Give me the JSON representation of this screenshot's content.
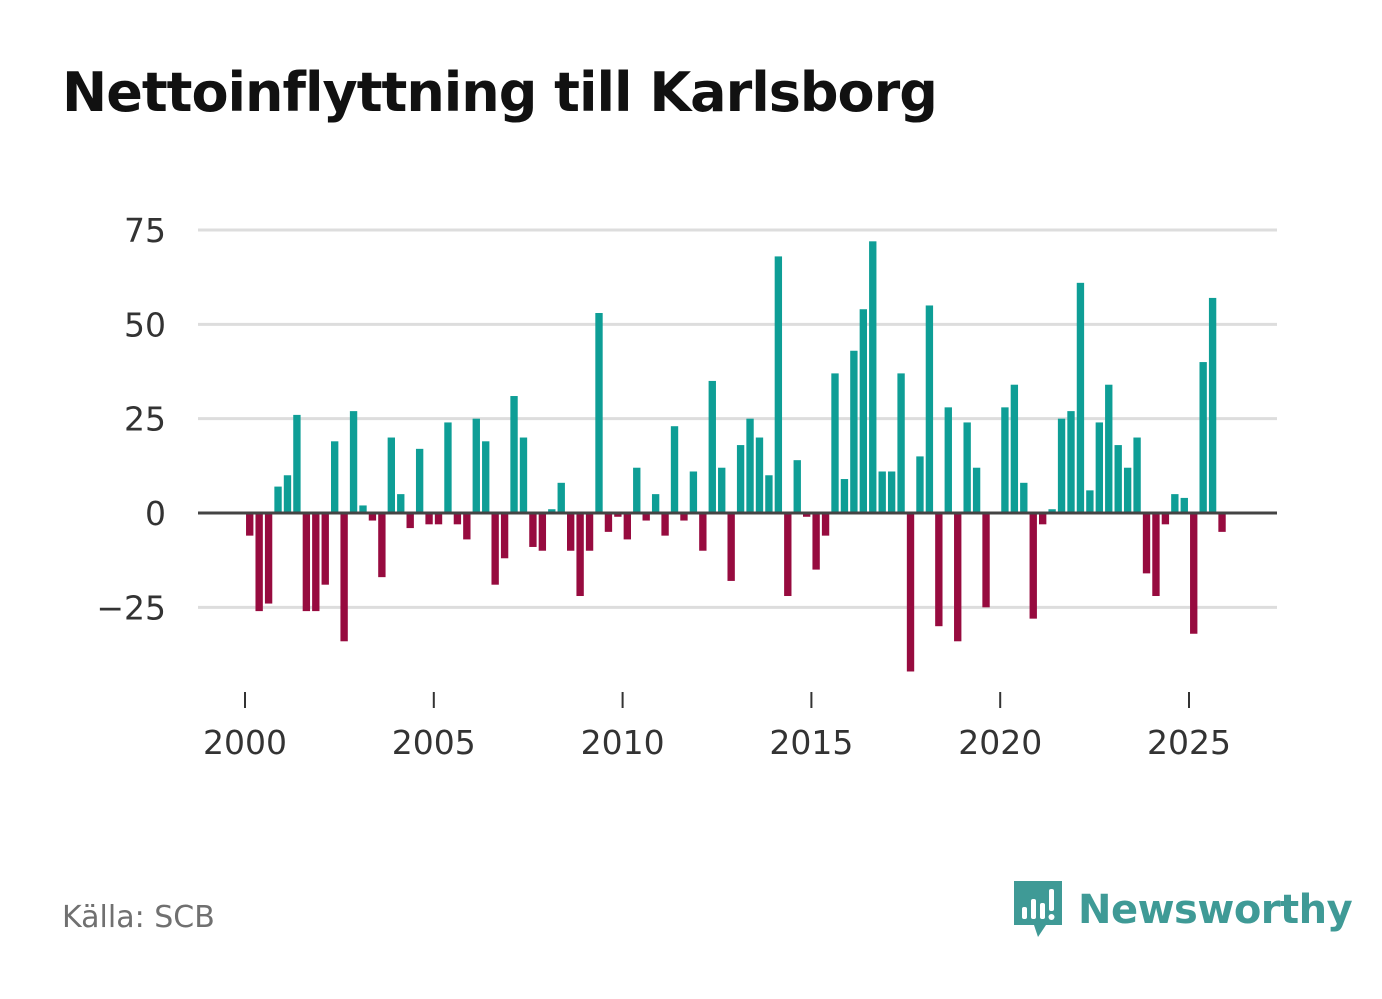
{
  "title": "Nettoinflyttning till Karlsborg",
  "source": "Källa: SCB",
  "brand": {
    "name": "Newsworthy"
  },
  "colors": {
    "positive": "#0e9e96",
    "negative": "#970b3f",
    "grid": "#dddddd",
    "zero_line": "#444444",
    "brand": "#3f9a96"
  },
  "chart_data": {
    "type": "bar",
    "title": "Nettoinflyttning till Karlsborg",
    "xlabel": "",
    "ylabel": "",
    "period": "quarterly",
    "x_start": 2000.0,
    "x_step": 0.25,
    "xlim": [
      1998.9,
      2027.5
    ],
    "ylim": [
      -45,
      78
    ],
    "yticks": [
      75,
      50,
      25,
      0,
      -25
    ],
    "ytick_labels": [
      "75",
      "50",
      "25",
      "0",
      "−25"
    ],
    "xticks": [
      2000,
      2005,
      2010,
      2015,
      2020,
      2025
    ],
    "xtick_labels": [
      "2000",
      "2005",
      "2010",
      "2015",
      "2020",
      "2025"
    ],
    "grid": true,
    "values": [
      -6,
      -26,
      -24,
      7,
      10,
      26,
      -26,
      -26,
      -19,
      19,
      -34,
      27,
      2,
      -2,
      -17,
      20,
      5,
      -4,
      17,
      -3,
      -3,
      24,
      -3,
      -7,
      25,
      19,
      -19,
      -12,
      31,
      20,
      -9,
      -10,
      1,
      8,
      -10,
      -22,
      -10,
      53,
      -5,
      -1,
      -7,
      12,
      -2,
      5,
      -6,
      23,
      -2,
      11,
      -10,
      35,
      12,
      -18,
      18,
      25,
      20,
      10,
      68,
      -22,
      14,
      -1,
      -15,
      -6,
      37,
      9,
      43,
      54,
      72,
      11,
      11,
      37,
      -42,
      15,
      55,
      -30,
      28,
      -34,
      24,
      12,
      -25,
      0,
      28,
      34,
      8,
      -28,
      -3,
      1,
      25,
      27,
      61,
      6,
      24,
      34,
      18,
      12,
      20,
      -16,
      -22,
      -3,
      5,
      4,
      -32,
      40,
      57,
      -5
    ]
  }
}
